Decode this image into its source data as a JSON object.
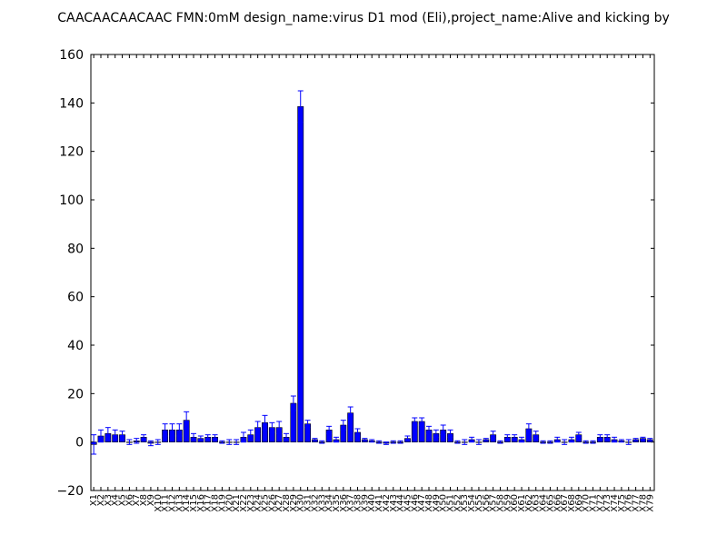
{
  "chart_data": {
    "type": "bar",
    "title": "CAACAACAACAAC  FMN:0mM  design_name:virus D1 mod (Eli),project_name:Alive and kicking by",
    "xlabel": "",
    "ylabel": "",
    "ylim": [
      -20,
      160
    ],
    "yticks": [
      -20,
      0,
      20,
      40,
      60,
      80,
      100,
      120,
      140,
      160
    ],
    "grid": false,
    "bar_color": "#0000ff",
    "errorbar_color": "#0000ff",
    "categories": [
      "X1",
      "X2",
      "X3",
      "X4",
      "X5",
      "X6",
      "X7",
      "X8",
      "X9",
      "X10",
      "X11",
      "X12",
      "X13",
      "X14",
      "X15",
      "X16",
      "X17",
      "X18",
      "X19",
      "X20",
      "X21",
      "X22",
      "X23",
      "X24",
      "X25",
      "X26",
      "X27",
      "X28",
      "X29",
      "X30",
      "X31",
      "X32",
      "X33",
      "X34",
      "X35",
      "X36",
      "X37",
      "X38",
      "X39",
      "X40",
      "X41",
      "X42",
      "X43",
      "X44",
      "X45",
      "X46",
      "X47",
      "X48",
      "X49",
      "X50",
      "X51",
      "X52",
      "X53",
      "X54",
      "X55",
      "X56",
      "X57",
      "X58",
      "X59",
      "X60",
      "X61",
      "X62",
      "X63",
      "X64",
      "X65",
      "X66",
      "X67",
      "X68",
      "X69",
      "X70",
      "X71",
      "X72",
      "X73",
      "X74",
      "X75",
      "X76",
      "X77",
      "X78",
      "X79"
    ],
    "tick_labels": [
      "X1",
      "X2",
      "X3",
      "X4",
      "X5",
      "X6",
      "X7",
      "X8",
      "X9",
      "X10",
      "X11",
      "X12",
      "X13",
      "X14",
      "X15",
      "X16",
      "X17",
      "X18",
      "X19",
      "X20",
      "X21",
      "X22",
      "X23",
      "X24",
      "X25",
      "X26",
      "X27",
      "X28",
      "X29",
      "X30",
      "X31",
      "X32",
      "X33",
      "X34",
      "X35",
      "X36",
      "X37",
      "X38",
      "X39",
      "X40",
      "X41",
      "X42",
      "X43",
      "X44",
      "X45",
      "X46",
      "X47",
      "X48",
      "X49",
      "X50",
      "X51",
      "X52",
      "X53",
      "X54",
      "X55",
      "X56",
      "X57",
      "X58",
      "X59",
      "X60",
      "X61",
      "X62",
      "X63",
      "X64",
      "X65",
      "X66",
      "X67",
      "X68",
      "X69",
      "X70",
      "X71",
      "X72",
      "X73",
      "X74",
      "X75",
      "X76",
      "X77",
      "X78",
      "X79"
    ],
    "values": [
      -1.0,
      2.5,
      3.5,
      3.0,
      3.0,
      0.0,
      0.5,
      2.0,
      -0.5,
      0.0,
      5.0,
      5.0,
      5.0,
      9.0,
      2.0,
      1.5,
      2.0,
      2.0,
      0.0,
      0.0,
      0.0,
      2.0,
      3.0,
      6.0,
      8.0,
      6.0,
      6.0,
      2.0,
      16.0,
      138.5,
      7.5,
      1.0,
      0.0,
      5.0,
      1.0,
      7.0,
      12.0,
      4.0,
      1.0,
      0.5,
      0.0,
      -0.5,
      0.0,
      0.0,
      1.5,
      8.5,
      8.5,
      5.0,
      3.5,
      5.0,
      3.5,
      0.0,
      0.0,
      1.0,
      0.0,
      1.0,
      3.0,
      0.0,
      2.0,
      2.0,
      1.0,
      5.5,
      3.0,
      0.0,
      0.0,
      1.0,
      0.0,
      1.0,
      3.0,
      0.0,
      0.0,
      2.0,
      2.0,
      1.0,
      0.5,
      0.0,
      1.0,
      1.5,
      1.0
    ],
    "errors": [
      4.0,
      2.5,
      2.5,
      2.0,
      1.5,
      1.0,
      1.0,
      1.0,
      1.0,
      1.0,
      2.5,
      2.5,
      2.5,
      3.5,
      1.5,
      1.0,
      1.0,
      1.0,
      0.5,
      1.0,
      1.0,
      2.0,
      2.0,
      2.5,
      3.0,
      2.0,
      2.5,
      1.5,
      3.0,
      6.5,
      1.5,
      0.5,
      0.5,
      1.5,
      1.0,
      2.0,
      2.5,
      1.5,
      0.5,
      0.5,
      0.5,
      0.5,
      0.5,
      0.5,
      1.0,
      1.5,
      1.5,
      1.5,
      1.5,
      2.0,
      1.5,
      0.5,
      1.0,
      1.0,
      1.0,
      0.5,
      1.5,
      0.5,
      1.0,
      1.0,
      1.0,
      2.0,
      1.5,
      0.5,
      0.5,
      1.0,
      1.0,
      1.0,
      1.0,
      0.5,
      0.5,
      1.0,
      1.0,
      1.0,
      0.5,
      1.0,
      0.5,
      0.5,
      0.5
    ]
  }
}
